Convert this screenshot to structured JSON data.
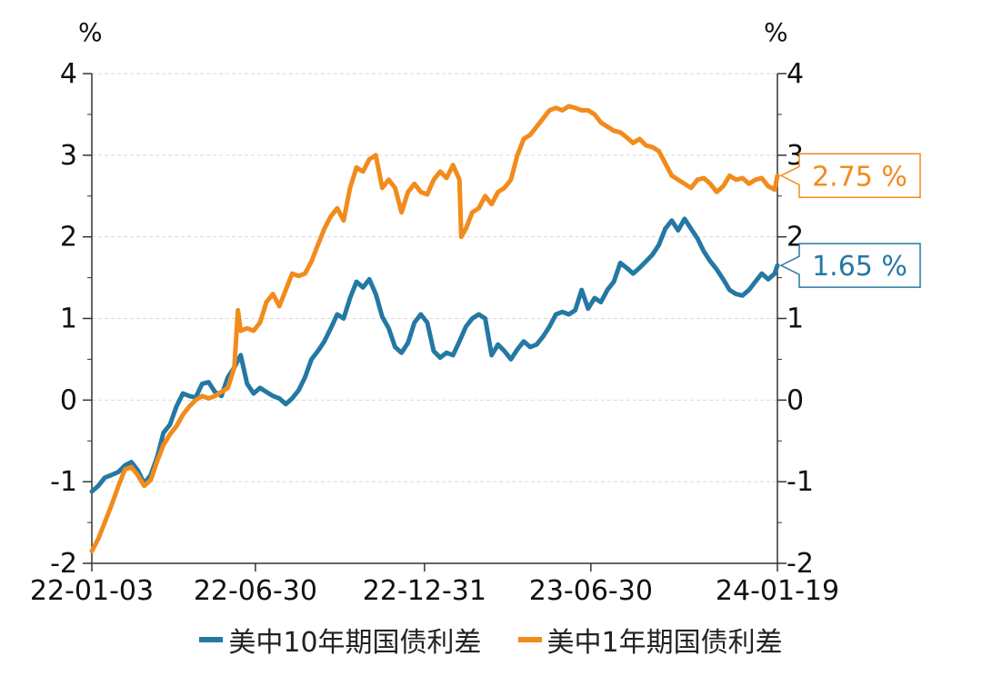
{
  "chart_data": {
    "type": "line",
    "x_axis": {
      "type": "date",
      "range": [
        "2022-01-03",
        "2024-01-19"
      ],
      "tick_labels": [
        {
          "date": "2022-01-03",
          "label": "22-01-03"
        },
        {
          "date": "2022-06-30",
          "label": "22-06-30"
        },
        {
          "date": "2022-12-31",
          "label": "22-12-31"
        },
        {
          "date": "2023-06-30",
          "label": "23-06-30"
        },
        {
          "date": "2024-01-19",
          "label": "24-01-19"
        }
      ]
    },
    "y_left": {
      "unit": "%",
      "ylim": [
        -2,
        4
      ],
      "ticks": [
        "-2",
        "-1",
        "0",
        "1",
        "2",
        "3",
        "4"
      ]
    },
    "y_right": {
      "unit": "%",
      "ylim": [
        -2,
        4
      ],
      "ticks": [
        "-2",
        "-1",
        "0",
        "1",
        "2",
        "3",
        "4"
      ]
    },
    "grid": true,
    "legend_position": "bottom",
    "series": [
      {
        "name": "美中10年期国债利差",
        "color": "#2478a4",
        "end_label": "1.65 %",
        "points": [
          [
            "2022-01-03",
            -1.12
          ],
          [
            "2022-01-10",
            -1.05
          ],
          [
            "2022-01-17",
            -0.95
          ],
          [
            "2022-01-24",
            -0.92
          ],
          [
            "2022-02-01",
            -0.88
          ],
          [
            "2022-02-08",
            -0.8
          ],
          [
            "2022-02-15",
            -0.76
          ],
          [
            "2022-02-22",
            -0.86
          ],
          [
            "2022-03-01",
            -1.02
          ],
          [
            "2022-03-08",
            -0.92
          ],
          [
            "2022-03-15",
            -0.7
          ],
          [
            "2022-03-22",
            -0.4
          ],
          [
            "2022-03-29",
            -0.3
          ],
          [
            "2022-04-05",
            -0.08
          ],
          [
            "2022-04-12",
            0.08
          ],
          [
            "2022-04-19",
            0.05
          ],
          [
            "2022-04-26",
            0.03
          ],
          [
            "2022-05-03",
            0.2
          ],
          [
            "2022-05-10",
            0.22
          ],
          [
            "2022-05-17",
            0.1
          ],
          [
            "2022-05-24",
            0.05
          ],
          [
            "2022-05-31",
            0.28
          ],
          [
            "2022-06-07",
            0.4
          ],
          [
            "2022-06-14",
            0.55
          ],
          [
            "2022-06-21",
            0.2
          ],
          [
            "2022-06-28",
            0.08
          ],
          [
            "2022-07-05",
            0.15
          ],
          [
            "2022-07-12",
            0.1
          ],
          [
            "2022-07-19",
            0.05
          ],
          [
            "2022-07-26",
            0.02
          ],
          [
            "2022-08-02",
            -0.05
          ],
          [
            "2022-08-09",
            0.02
          ],
          [
            "2022-08-16",
            0.12
          ],
          [
            "2022-08-23",
            0.28
          ],
          [
            "2022-08-30",
            0.5
          ],
          [
            "2022-09-06",
            0.6
          ],
          [
            "2022-09-13",
            0.72
          ],
          [
            "2022-09-20",
            0.88
          ],
          [
            "2022-09-27",
            1.05
          ],
          [
            "2022-10-04",
            1.0
          ],
          [
            "2022-10-11",
            1.25
          ],
          [
            "2022-10-18",
            1.45
          ],
          [
            "2022-10-25",
            1.38
          ],
          [
            "2022-11-01",
            1.48
          ],
          [
            "2022-11-08",
            1.3
          ],
          [
            "2022-11-15",
            1.02
          ],
          [
            "2022-11-22",
            0.88
          ],
          [
            "2022-11-29",
            0.65
          ],
          [
            "2022-12-06",
            0.58
          ],
          [
            "2022-12-13",
            0.7
          ],
          [
            "2022-12-20",
            0.95
          ],
          [
            "2022-12-27",
            1.05
          ],
          [
            "2023-01-03",
            0.95
          ],
          [
            "2023-01-10",
            0.6
          ],
          [
            "2023-01-17",
            0.52
          ],
          [
            "2023-01-24",
            0.58
          ],
          [
            "2023-01-31",
            0.55
          ],
          [
            "2023-02-07",
            0.72
          ],
          [
            "2023-02-14",
            0.9
          ],
          [
            "2023-02-21",
            1.0
          ],
          [
            "2023-02-28",
            1.05
          ],
          [
            "2023-03-07",
            1.0
          ],
          [
            "2023-03-14",
            0.55
          ],
          [
            "2023-03-21",
            0.68
          ],
          [
            "2023-03-28",
            0.6
          ],
          [
            "2023-04-04",
            0.5
          ],
          [
            "2023-04-11",
            0.62
          ],
          [
            "2023-04-18",
            0.72
          ],
          [
            "2023-04-25",
            0.65
          ],
          [
            "2023-05-02",
            0.68
          ],
          [
            "2023-05-09",
            0.78
          ],
          [
            "2023-05-16",
            0.9
          ],
          [
            "2023-05-23",
            1.05
          ],
          [
            "2023-05-30",
            1.08
          ],
          [
            "2023-06-06",
            1.05
          ],
          [
            "2023-06-13",
            1.1
          ],
          [
            "2023-06-20",
            1.35
          ],
          [
            "2023-06-27",
            1.12
          ],
          [
            "2023-07-04",
            1.25
          ],
          [
            "2023-07-11",
            1.2
          ],
          [
            "2023-07-18",
            1.35
          ],
          [
            "2023-07-25",
            1.45
          ],
          [
            "2023-08-01",
            1.68
          ],
          [
            "2023-08-08",
            1.62
          ],
          [
            "2023-08-15",
            1.55
          ],
          [
            "2023-08-22",
            1.62
          ],
          [
            "2023-08-29",
            1.7
          ],
          [
            "2023-09-05",
            1.78
          ],
          [
            "2023-09-12",
            1.9
          ],
          [
            "2023-09-19",
            2.1
          ],
          [
            "2023-09-26",
            2.2
          ],
          [
            "2023-10-03",
            2.08
          ],
          [
            "2023-10-10",
            2.22
          ],
          [
            "2023-10-17",
            2.1
          ],
          [
            "2023-10-24",
            1.98
          ],
          [
            "2023-10-31",
            1.82
          ],
          [
            "2023-11-07",
            1.7
          ],
          [
            "2023-11-14",
            1.6
          ],
          [
            "2023-11-21",
            1.48
          ],
          [
            "2023-11-28",
            1.35
          ],
          [
            "2023-12-05",
            1.3
          ],
          [
            "2023-12-12",
            1.28
          ],
          [
            "2023-12-19",
            1.35
          ],
          [
            "2023-12-26",
            1.45
          ],
          [
            "2024-01-02",
            1.55
          ],
          [
            "2024-01-09",
            1.48
          ],
          [
            "2024-01-16",
            1.55
          ],
          [
            "2024-01-19",
            1.65
          ]
        ]
      },
      {
        "name": "美中1年期国债利差",
        "color": "#f28b1c",
        "end_label": "2.75 %",
        "points": [
          [
            "2022-01-03",
            -1.85
          ],
          [
            "2022-01-10",
            -1.7
          ],
          [
            "2022-01-17",
            -1.5
          ],
          [
            "2022-01-24",
            -1.3
          ],
          [
            "2022-02-01",
            -1.05
          ],
          [
            "2022-02-08",
            -0.85
          ],
          [
            "2022-02-15",
            -0.82
          ],
          [
            "2022-02-22",
            -0.92
          ],
          [
            "2022-03-01",
            -1.05
          ],
          [
            "2022-03-08",
            -0.98
          ],
          [
            "2022-03-15",
            -0.75
          ],
          [
            "2022-03-22",
            -0.55
          ],
          [
            "2022-03-29",
            -0.42
          ],
          [
            "2022-04-05",
            -0.32
          ],
          [
            "2022-04-12",
            -0.18
          ],
          [
            "2022-04-19",
            -0.08
          ],
          [
            "2022-04-26",
            0.0
          ],
          [
            "2022-05-03",
            0.05
          ],
          [
            "2022-05-10",
            0.02
          ],
          [
            "2022-05-17",
            0.05
          ],
          [
            "2022-05-24",
            0.1
          ],
          [
            "2022-05-31",
            0.15
          ],
          [
            "2022-06-07",
            0.4
          ],
          [
            "2022-06-11",
            1.1
          ],
          [
            "2022-06-14",
            0.85
          ],
          [
            "2022-06-21",
            0.88
          ],
          [
            "2022-06-28",
            0.85
          ],
          [
            "2022-07-05",
            0.95
          ],
          [
            "2022-07-12",
            1.2
          ],
          [
            "2022-07-19",
            1.3
          ],
          [
            "2022-07-26",
            1.15
          ],
          [
            "2022-08-02",
            1.35
          ],
          [
            "2022-08-09",
            1.55
          ],
          [
            "2022-08-16",
            1.52
          ],
          [
            "2022-08-23",
            1.55
          ],
          [
            "2022-08-30",
            1.7
          ],
          [
            "2022-09-06",
            1.9
          ],
          [
            "2022-09-13",
            2.1
          ],
          [
            "2022-09-20",
            2.25
          ],
          [
            "2022-09-27",
            2.35
          ],
          [
            "2022-10-04",
            2.2
          ],
          [
            "2022-10-11",
            2.6
          ],
          [
            "2022-10-18",
            2.85
          ],
          [
            "2022-10-25",
            2.8
          ],
          [
            "2022-11-01",
            2.95
          ],
          [
            "2022-11-08",
            3.0
          ],
          [
            "2022-11-15",
            2.6
          ],
          [
            "2022-11-22",
            2.7
          ],
          [
            "2022-11-29",
            2.6
          ],
          [
            "2022-12-06",
            2.3
          ],
          [
            "2022-12-13",
            2.55
          ],
          [
            "2022-12-20",
            2.65
          ],
          [
            "2022-12-27",
            2.55
          ],
          [
            "2023-01-03",
            2.52
          ],
          [
            "2023-01-10",
            2.7
          ],
          [
            "2023-01-17",
            2.8
          ],
          [
            "2023-01-24",
            2.72
          ],
          [
            "2023-01-31",
            2.88
          ],
          [
            "2023-02-07",
            2.7
          ],
          [
            "2023-02-09",
            2.0
          ],
          [
            "2023-02-14",
            2.1
          ],
          [
            "2023-02-21",
            2.3
          ],
          [
            "2023-02-28",
            2.35
          ],
          [
            "2023-03-07",
            2.5
          ],
          [
            "2023-03-14",
            2.4
          ],
          [
            "2023-03-21",
            2.55
          ],
          [
            "2023-03-28",
            2.6
          ],
          [
            "2023-04-04",
            2.7
          ],
          [
            "2023-04-11",
            3.0
          ],
          [
            "2023-04-18",
            3.2
          ],
          [
            "2023-04-25",
            3.25
          ],
          [
            "2023-05-02",
            3.35
          ],
          [
            "2023-05-09",
            3.45
          ],
          [
            "2023-05-16",
            3.55
          ],
          [
            "2023-05-23",
            3.58
          ],
          [
            "2023-05-30",
            3.55
          ],
          [
            "2023-06-06",
            3.6
          ],
          [
            "2023-06-13",
            3.58
          ],
          [
            "2023-06-20",
            3.55
          ],
          [
            "2023-06-27",
            3.55
          ],
          [
            "2023-07-04",
            3.5
          ],
          [
            "2023-07-11",
            3.4
          ],
          [
            "2023-07-18",
            3.35
          ],
          [
            "2023-07-25",
            3.3
          ],
          [
            "2023-08-01",
            3.28
          ],
          [
            "2023-08-08",
            3.22
          ],
          [
            "2023-08-15",
            3.15
          ],
          [
            "2023-08-22",
            3.2
          ],
          [
            "2023-08-29",
            3.12
          ],
          [
            "2023-09-05",
            3.1
          ],
          [
            "2023-09-12",
            3.05
          ],
          [
            "2023-09-19",
            2.9
          ],
          [
            "2023-09-26",
            2.75
          ],
          [
            "2023-10-03",
            2.7
          ],
          [
            "2023-10-10",
            2.65
          ],
          [
            "2023-10-17",
            2.6
          ],
          [
            "2023-10-24",
            2.7
          ],
          [
            "2023-10-31",
            2.72
          ],
          [
            "2023-11-07",
            2.65
          ],
          [
            "2023-11-14",
            2.55
          ],
          [
            "2023-11-21",
            2.62
          ],
          [
            "2023-11-28",
            2.75
          ],
          [
            "2023-12-05",
            2.7
          ],
          [
            "2023-12-12",
            2.72
          ],
          [
            "2023-12-19",
            2.65
          ],
          [
            "2023-12-26",
            2.7
          ],
          [
            "2024-01-02",
            2.72
          ],
          [
            "2024-01-09",
            2.62
          ],
          [
            "2024-01-16",
            2.58
          ],
          [
            "2024-01-19",
            2.75
          ]
        ]
      }
    ]
  }
}
